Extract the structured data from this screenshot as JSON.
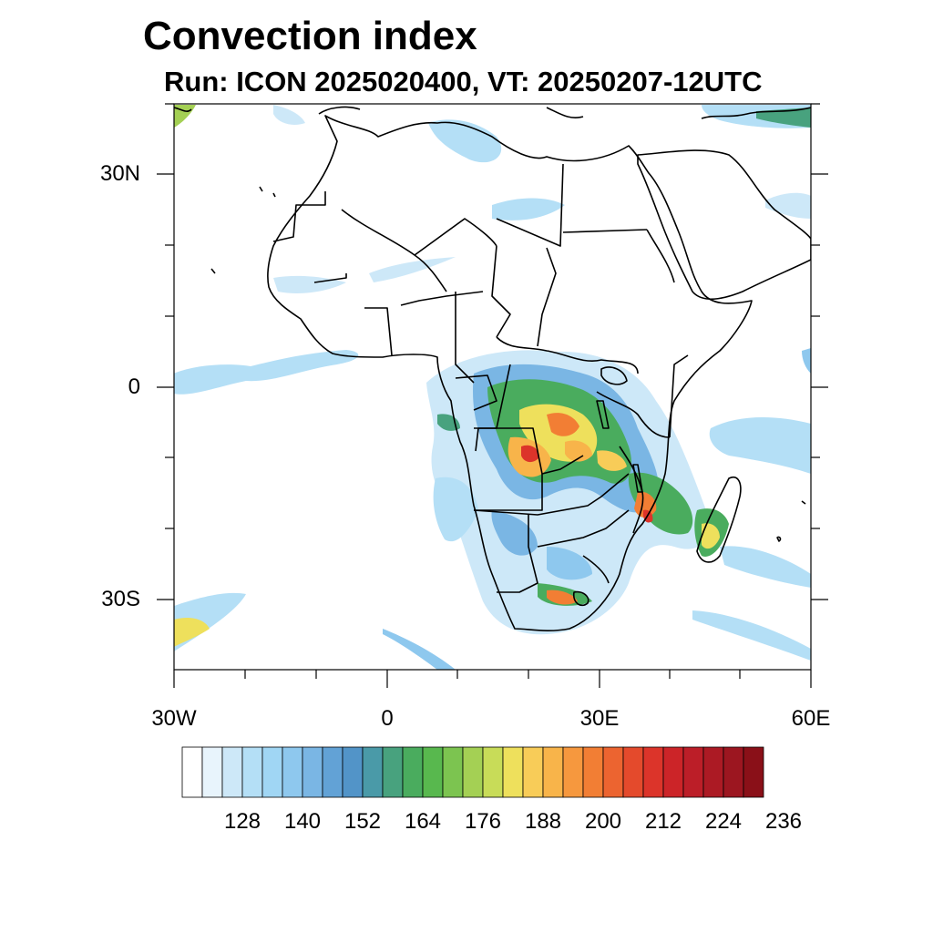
{
  "title": "Convection index",
  "subtitle": "Run: ICON 2025020400,  VT: 20250207-12UTC",
  "lat_labels": [
    "30N",
    "0",
    "30S"
  ],
  "lon_labels": [
    "30W",
    "0",
    "30E",
    "60E"
  ],
  "colorbar": {
    "labels": [
      "128",
      "140",
      "152",
      "164",
      "176",
      "188",
      "200",
      "212",
      "224",
      "236"
    ],
    "colors": [
      "#ffffff",
      "#e8f4fc",
      "#cde8f8",
      "#b4dff6",
      "#a0d6f4",
      "#8ec8ee",
      "#7ab6e4",
      "#62a2d6",
      "#5294c8",
      "#4a9aa8",
      "#48a27e",
      "#4aac5e",
      "#58b84e",
      "#7cc450",
      "#a4d054",
      "#c8dc58",
      "#eee05c",
      "#f8cc58",
      "#f8b44a",
      "#f6983e",
      "#f27e34",
      "#ec6430",
      "#e44a2c",
      "#dc342a",
      "#cc2428",
      "#bc1e28",
      "#ac1a24",
      "#9c1620",
      "#8a1018"
    ]
  }
}
